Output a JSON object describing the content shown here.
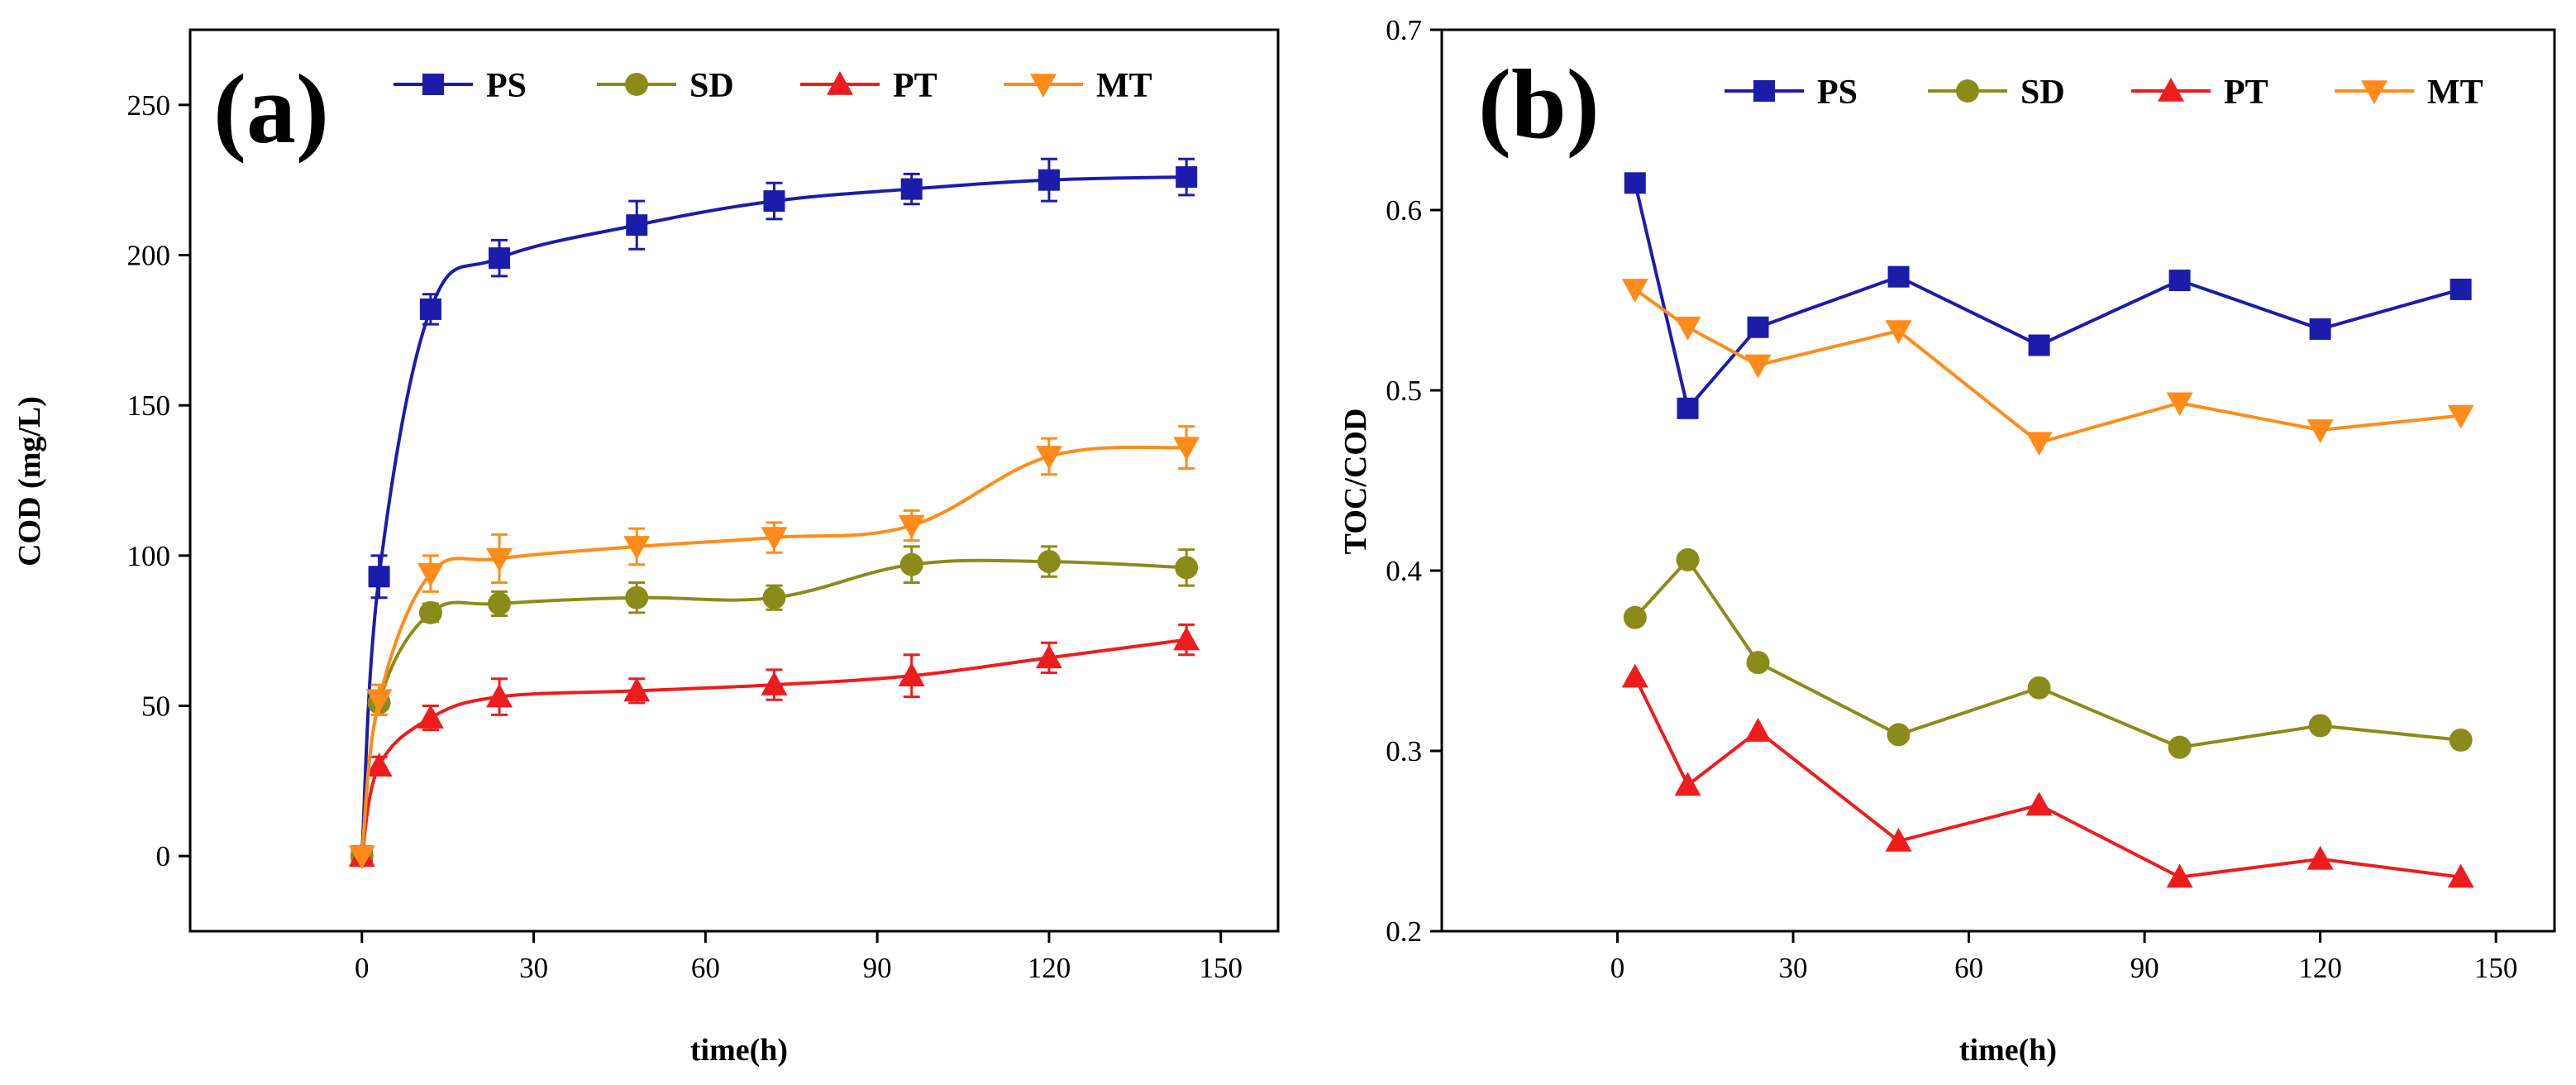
{
  "chart_data": [
    {
      "type": "line",
      "panel_label": "(a)",
      "title": "",
      "xlabel": "time(h)",
      "ylabel": "COD (mg/L)",
      "xlim": [
        -30,
        160
      ],
      "ylim": [
        -25,
        275
      ],
      "xticks": [
        0,
        30,
        60,
        90,
        120,
        150
      ],
      "yticks": [
        0,
        50,
        100,
        150,
        200,
        250
      ],
      "grid": false,
      "legend_position": "top-center",
      "x": [
        0,
        3,
        12,
        24,
        48,
        72,
        96,
        120,
        144
      ],
      "series": [
        {
          "name": "PS",
          "color": "#1c1caa",
          "marker": "square",
          "values": [
            0,
            93,
            182,
            199,
            210,
            218,
            222,
            225,
            226
          ],
          "errors": [
            0,
            7,
            5,
            6,
            8,
            6,
            5,
            7,
            6
          ]
        },
        {
          "name": "SD",
          "color": "#8b8b1a",
          "marker": "circle",
          "values": [
            0,
            51,
            81,
            84,
            86,
            86,
            97,
            98,
            96
          ],
          "errors": [
            0,
            4,
            3,
            4,
            5,
            4,
            6,
            5,
            6
          ]
        },
        {
          "name": "PT",
          "color": "#ee1c1c",
          "marker": "triangle-up",
          "values": [
            0,
            30,
            46,
            53,
            55,
            57,
            60,
            66,
            72
          ],
          "errors": [
            0,
            3,
            4,
            6,
            4,
            5,
            7,
            5,
            5
          ]
        },
        {
          "name": "MT",
          "color": "#ff8c1a",
          "marker": "triangle-down",
          "values": [
            0,
            52,
            94,
            99,
            103,
            106,
            110,
            133,
            136
          ],
          "errors": [
            0,
            5,
            6,
            8,
            6,
            5,
            5,
            6,
            7
          ]
        }
      ]
    },
    {
      "type": "line",
      "panel_label": "(b)",
      "title": "",
      "xlabel": "time(h)",
      "ylabel": "TOC/COD",
      "xlim": [
        -30,
        160
      ],
      "ylim": [
        0.2,
        0.7
      ],
      "xticks": [
        0,
        30,
        60,
        90,
        120,
        150
      ],
      "yticks": [
        0.2,
        0.3,
        0.4,
        0.5,
        0.6,
        0.7
      ],
      "ytick_labels": [
        "0.2",
        "0.3",
        "0.4",
        "0.5",
        "0.6",
        "0.7"
      ],
      "grid": false,
      "legend_position": "top-center",
      "x": [
        3,
        12,
        24,
        48,
        72,
        96,
        120,
        144
      ],
      "series": [
        {
          "name": "PS",
          "color": "#1c1caa",
          "marker": "square",
          "values": [
            0.615,
            0.49,
            0.535,
            0.563,
            0.525,
            0.561,
            0.534,
            0.556
          ]
        },
        {
          "name": "SD",
          "color": "#8b8b1a",
          "marker": "circle",
          "values": [
            0.374,
            0.406,
            0.349,
            0.309,
            0.335,
            0.302,
            0.314,
            0.306
          ]
        },
        {
          "name": "PT",
          "color": "#ee1c1c",
          "marker": "triangle-up",
          "values": [
            0.341,
            0.281,
            0.311,
            0.25,
            0.27,
            0.23,
            0.24,
            0.23
          ]
        },
        {
          "name": "MT",
          "color": "#ff8c1a",
          "marker": "triangle-down",
          "values": [
            0.556,
            0.535,
            0.514,
            0.533,
            0.471,
            0.493,
            0.478,
            0.486
          ]
        }
      ]
    }
  ]
}
